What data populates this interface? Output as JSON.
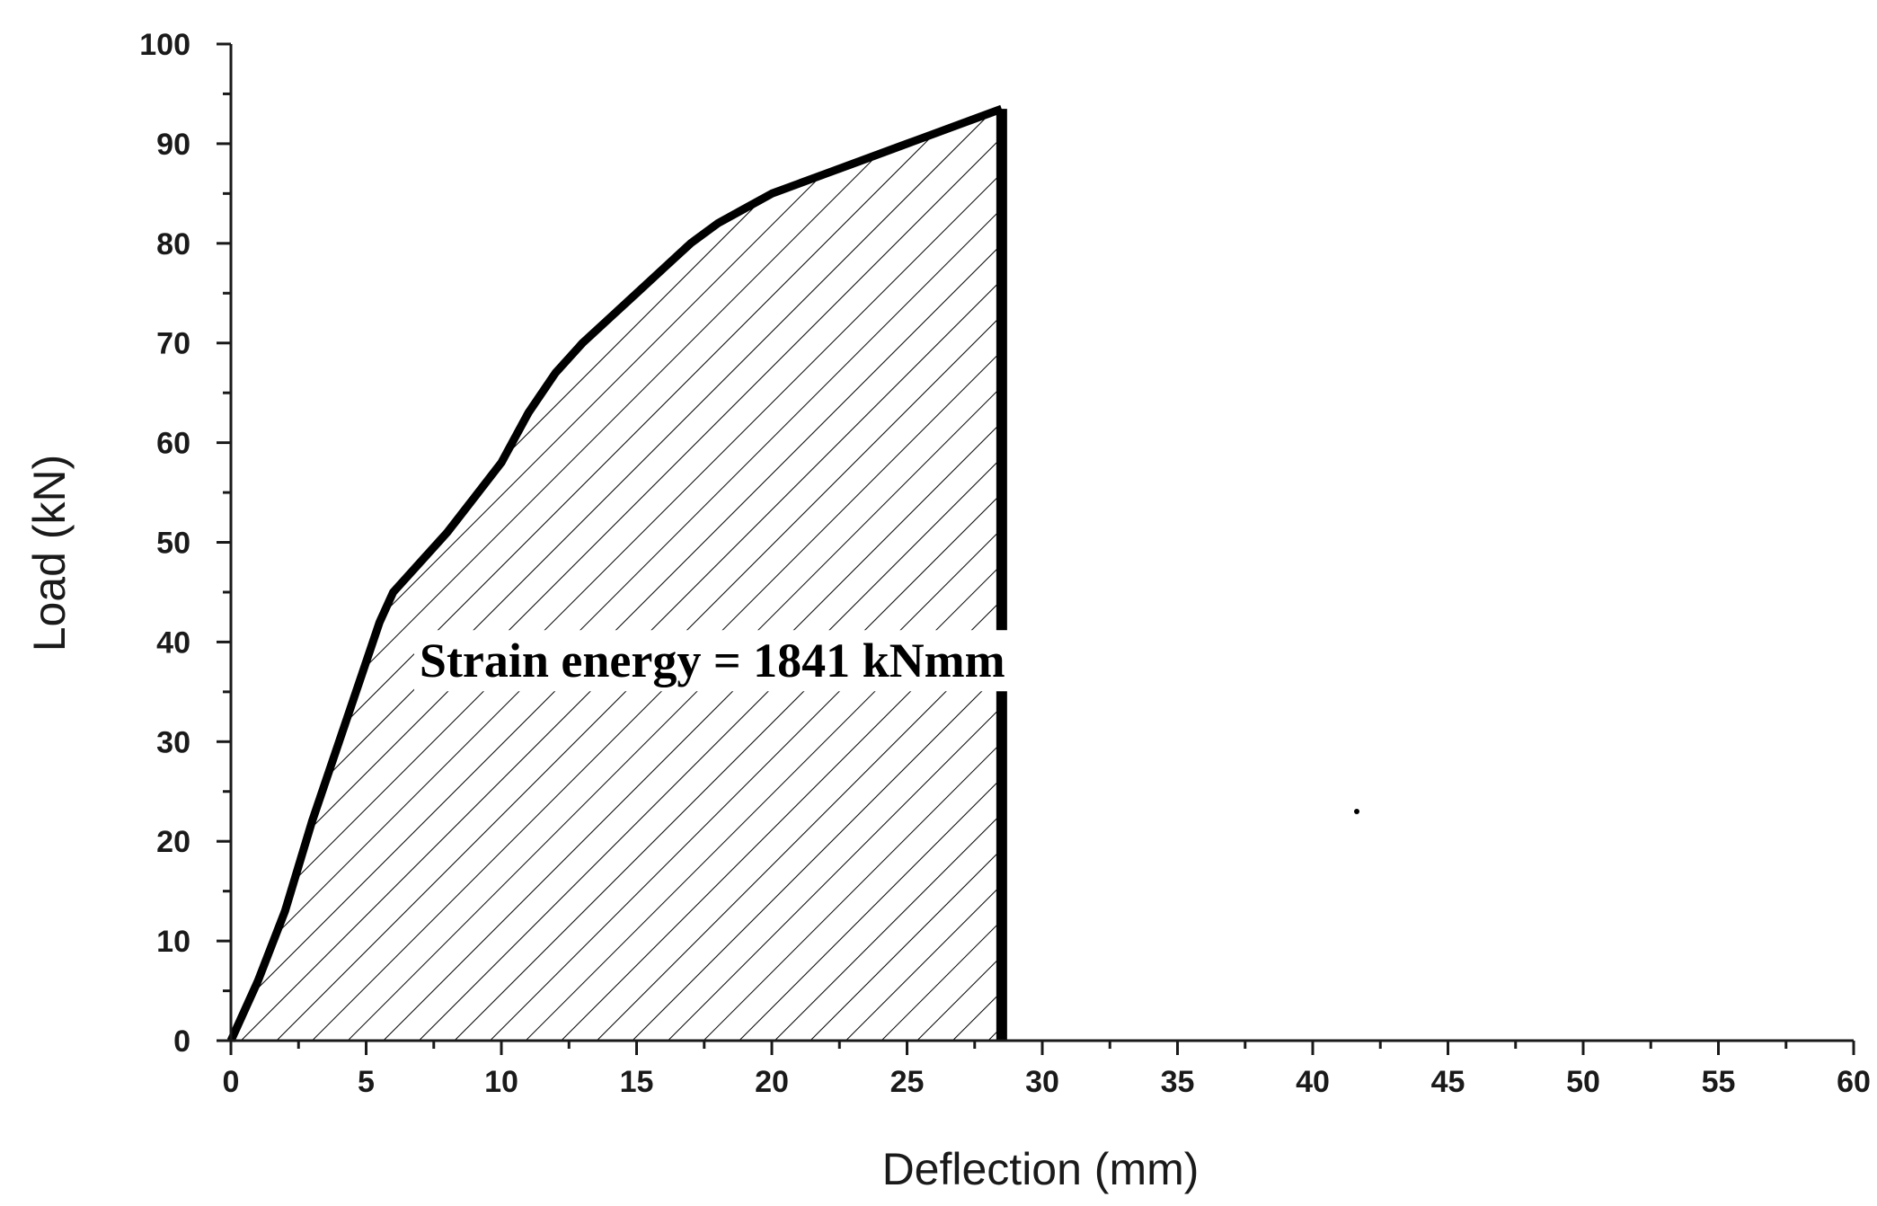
{
  "chart_data": {
    "type": "area",
    "xlabel": "Deflection (mm)",
    "ylabel": "Load (kN)",
    "xlim": [
      0,
      60
    ],
    "ylim": [
      0,
      100
    ],
    "x_ticks": [
      0,
      5,
      10,
      15,
      20,
      25,
      30,
      35,
      40,
      45,
      50,
      55,
      60
    ],
    "y_ticks": [
      0,
      10,
      20,
      30,
      40,
      50,
      60,
      70,
      80,
      90,
      100
    ],
    "x_tick_labels": [
      "0",
      "5",
      "10",
      "15",
      "20",
      "25",
      "30",
      "35",
      "40",
      "45",
      "50",
      "55",
      "60"
    ],
    "y_tick_labels": [
      "0",
      "10",
      "20",
      "30",
      "40",
      "50",
      "60",
      "70",
      "80",
      "90",
      "100"
    ],
    "grid": false,
    "fill": "hatched",
    "series": [
      {
        "x": [
          0,
          1,
          2,
          3,
          4,
          5,
          5.5,
          6,
          7,
          8,
          9,
          10,
          11,
          12,
          13,
          14,
          15,
          16,
          17,
          18,
          19,
          20,
          21,
          22,
          23,
          24,
          25,
          26,
          27,
          28,
          28.5
        ],
        "y": [
          0,
          6,
          13,
          22,
          30,
          38,
          42,
          45,
          48,
          51,
          54.5,
          58,
          63,
          67,
          70,
          72.5,
          75,
          77.5,
          80,
          82,
          83.5,
          85,
          86,
          87,
          88,
          89,
          90,
          91,
          92,
          93,
          93.5
        ]
      }
    ],
    "drop_line_x": 28.5,
    "annotations": [
      {
        "text": "Strain energy = 1841 kNmm",
        "x": 17.8,
        "y": 36.5
      }
    ],
    "colors": {
      "line": "#000000",
      "hatch": "#000000",
      "axis": "#1a1a1a"
    }
  }
}
